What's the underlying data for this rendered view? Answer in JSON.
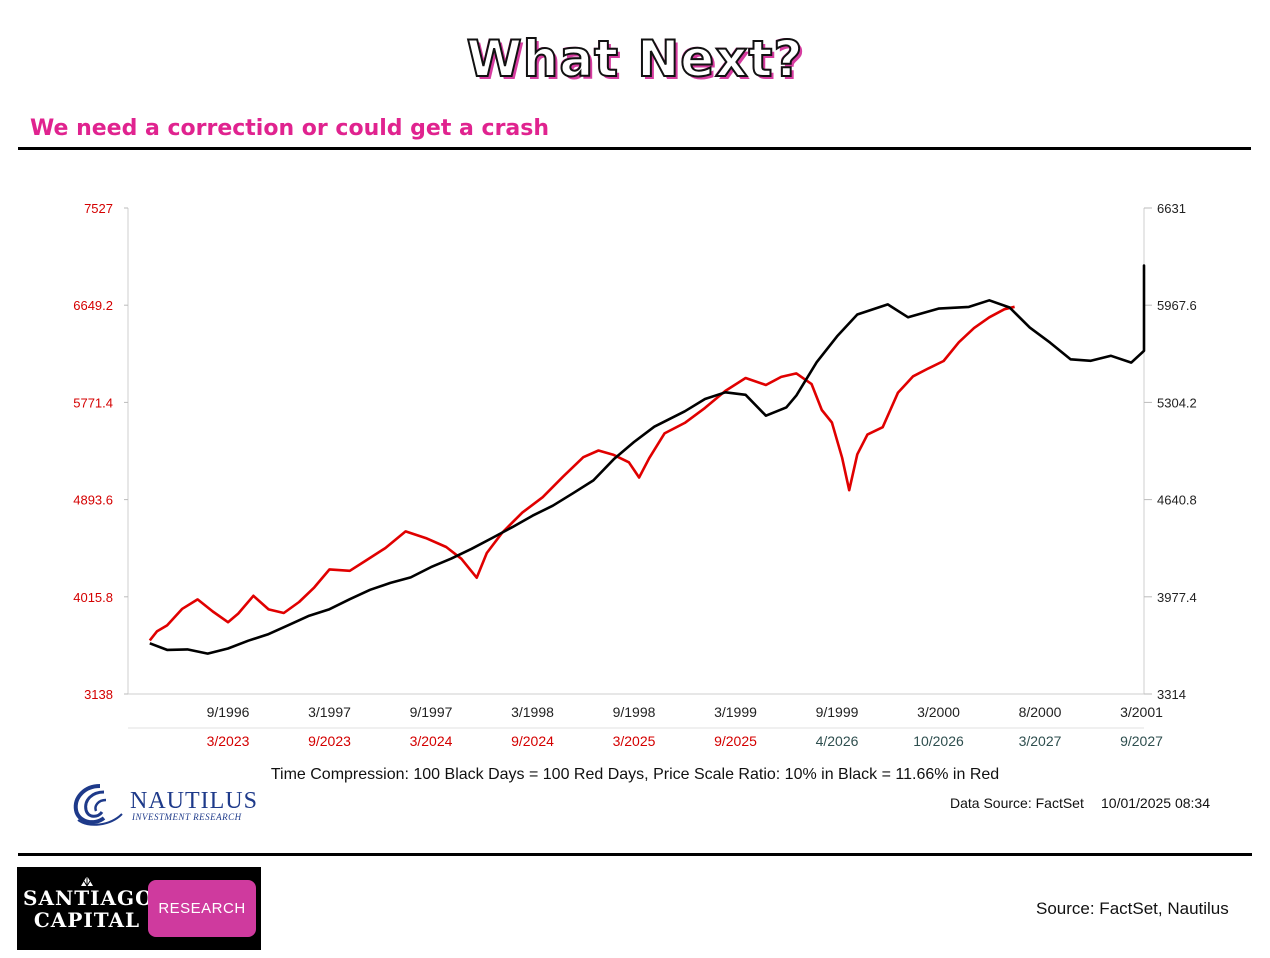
{
  "page": {
    "title": "What Next?",
    "subtitle": "We need a correction or could get a crash",
    "source": "Source: FactSet, Nautilus"
  },
  "branding": {
    "nautilus_name": "NAUTILUS",
    "nautilus_tagline": "INVESTMENT RESEARCH",
    "santiago_line1": "SANTIAGO",
    "santiago_line2": "CAPITAL",
    "research_label": "RESEARCH",
    "nautilus_color": "#1e3a8a",
    "research_color": "#cf3a9e",
    "title_accent": "#e0238f"
  },
  "footer": {
    "data_source": "Data Source: FactSet",
    "timestamp": "10/01/2025 08:34"
  },
  "chart_data": {
    "type": "line",
    "caption": "Time Compression: 100 Black Days = 100 Red Days,  Price Scale Ratio: 10% in Black = 11.66% in Red",
    "grid": false,
    "left_axis": {
      "color": "#d40000",
      "ticks": [
        "7527",
        "6649.2",
        "5771.4",
        "4893.6",
        "4015.8",
        "3138"
      ],
      "ylim": [
        3138,
        7527
      ]
    },
    "right_axis": {
      "color": "#000000",
      "ticks": [
        "6631",
        "5967.6",
        "5304.2",
        "4640.8",
        "3977.4",
        "3314"
      ],
      "ylim": [
        3314,
        6631
      ]
    },
    "x_ticks_top": [
      "9/1996",
      "3/1997",
      "9/1997",
      "3/1998",
      "9/1998",
      "3/1999",
      "9/1999",
      "3/2000",
      "8/2000",
      "3/2001"
    ],
    "x_ticks_bottom": [
      "3/2023",
      "9/2023",
      "3/2024",
      "9/2024",
      "3/2025",
      "9/2025",
      "4/2026",
      "10/2026",
      "3/2027",
      "9/2027"
    ],
    "x_ticks_bottom_colors": [
      "#d40000",
      "#d40000",
      "#d40000",
      "#d40000",
      "#d40000",
      "#d40000",
      "#2f4f4f",
      "#2f4f4f",
      "#2f4f4f",
      "#2f4f4f"
    ],
    "x_range": [
      -0.77,
      10
    ],
    "series": [
      {
        "axis": "right",
        "color": "#000000",
        "points": [
          [
            -0.77,
            3660
          ],
          [
            -0.6,
            3640
          ],
          [
            -0.4,
            3620
          ],
          [
            -0.2,
            3605
          ],
          [
            0.0,
            3635
          ],
          [
            0.2,
            3690
          ],
          [
            0.4,
            3740
          ],
          [
            0.6,
            3790
          ],
          [
            0.8,
            3830
          ],
          [
            1.0,
            3880
          ],
          [
            1.2,
            3960
          ],
          [
            1.4,
            4020
          ],
          [
            1.6,
            4050
          ],
          [
            1.8,
            4110
          ],
          [
            2.0,
            4175
          ],
          [
            2.2,
            4250
          ],
          [
            2.4,
            4330
          ],
          [
            2.6,
            4390
          ],
          [
            2.8,
            4470
          ],
          [
            3.0,
            4540
          ],
          [
            3.2,
            4620
          ],
          [
            3.4,
            4700
          ],
          [
            3.6,
            4790
          ],
          [
            3.8,
            4900
          ],
          [
            4.0,
            5010
          ],
          [
            4.2,
            5120
          ],
          [
            4.5,
            5230
          ],
          [
            4.7,
            5300
          ],
          [
            4.9,
            5350
          ],
          [
            5.1,
            5340
          ],
          [
            5.3,
            5240
          ],
          [
            5.5,
            5290
          ],
          [
            5.6,
            5360
          ],
          [
            5.8,
            5590
          ],
          [
            6.0,
            5760
          ],
          [
            6.2,
            5920
          ],
          [
            6.5,
            6000
          ],
          [
            6.7,
            5910
          ],
          [
            7.0,
            5930
          ],
          [
            7.3,
            5950
          ],
          [
            7.5,
            5990
          ],
          [
            7.7,
            5950
          ],
          [
            7.9,
            5800
          ],
          [
            8.1,
            5690
          ],
          [
            8.3,
            5590
          ],
          [
            8.5,
            5610
          ],
          [
            8.7,
            5630
          ],
          [
            8.9,
            5590
          ],
          [
            9.1,
            5660
          ],
          [
            9.3,
            5700
          ],
          [
            9.5,
            5720
          ],
          [
            9.7,
            5780
          ],
          [
            10.0,
            5820
          ],
          [
            10.3,
            5920
          ],
          [
            10.5,
            5960
          ],
          [
            10.7,
            6010
          ],
          [
            10.9,
            6060
          ],
          [
            11.1,
            6070
          ],
          [
            11.3,
            6110
          ],
          [
            11.5,
            6160
          ],
          [
            11.7,
            6200
          ],
          [
            11.85,
            6240
          ],
          [
            12.0,
            6210
          ],
          [
            12.1,
            6090
          ],
          [
            12.2,
            6040
          ],
          [
            12.3,
            6130
          ],
          [
            12.5,
            6070
          ],
          [
            12.6,
            6150
          ],
          [
            12.7,
            6120
          ],
          [
            12.8,
            6180
          ]
        ]
      },
      {
        "axis": "left",
        "color": "#e00000",
        "points": [
          [
            -0.77,
            3600
          ],
          [
            -0.7,
            3680
          ],
          [
            -0.6,
            3750
          ],
          [
            -0.45,
            3900
          ],
          [
            -0.3,
            3980
          ],
          [
            -0.15,
            3860
          ],
          [
            0.0,
            3790
          ],
          [
            0.1,
            3900
          ],
          [
            0.25,
            4050
          ],
          [
            0.4,
            3930
          ],
          [
            0.55,
            3880
          ],
          [
            0.7,
            3980
          ],
          [
            0.85,
            4120
          ],
          [
            1.0,
            4240
          ],
          [
            1.2,
            4230
          ],
          [
            1.35,
            4310
          ],
          [
            1.55,
            4450
          ],
          [
            1.75,
            4580
          ],
          [
            1.95,
            4520
          ],
          [
            2.15,
            4450
          ],
          [
            2.3,
            4360
          ],
          [
            2.45,
            4200
          ],
          [
            2.55,
            4420
          ],
          [
            2.7,
            4600
          ],
          [
            2.9,
            4790
          ],
          [
            3.1,
            4950
          ],
          [
            3.3,
            5120
          ],
          [
            3.5,
            5300
          ],
          [
            3.65,
            5310
          ],
          [
            3.8,
            5280
          ],
          [
            3.95,
            5210
          ],
          [
            4.05,
            5080
          ],
          [
            4.15,
            5240
          ],
          [
            4.3,
            5460
          ],
          [
            4.5,
            5580
          ],
          [
            4.7,
            5730
          ],
          [
            4.9,
            5890
          ],
          [
            5.1,
            6010
          ],
          [
            5.3,
            5960
          ],
          [
            5.45,
            6030
          ],
          [
            5.6,
            6060
          ],
          [
            5.75,
            5970
          ],
          [
            5.85,
            5710
          ],
          [
            5.95,
            5560
          ],
          [
            6.05,
            5250
          ],
          [
            6.12,
            4970
          ],
          [
            6.2,
            5300
          ],
          [
            6.3,
            5450
          ],
          [
            6.45,
            5540
          ],
          [
            6.6,
            5840
          ],
          [
            6.75,
            6010
          ],
          [
            6.9,
            6110
          ],
          [
            7.05,
            6180
          ],
          [
            7.2,
            6320
          ],
          [
            7.35,
            6450
          ],
          [
            7.5,
            6550
          ],
          [
            7.65,
            6620
          ],
          [
            7.75,
            6670
          ]
        ]
      }
    ]
  }
}
